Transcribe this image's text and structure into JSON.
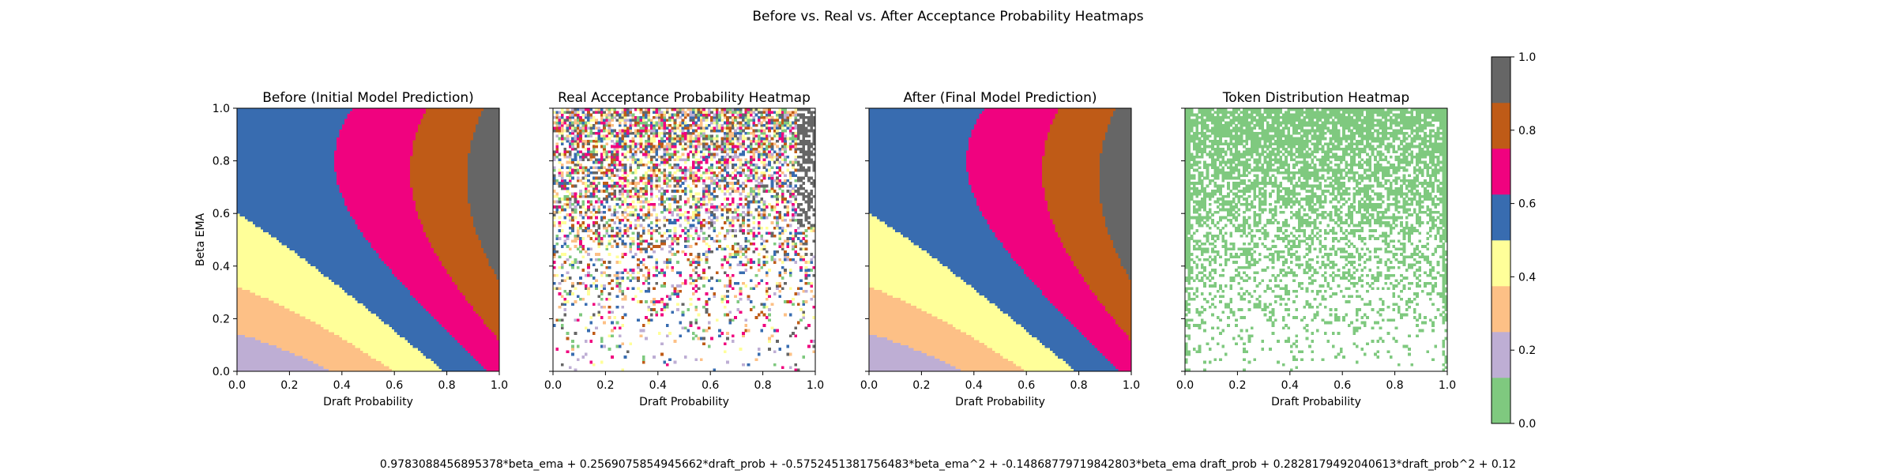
{
  "figure": {
    "suptitle": "Before vs. Real vs. After Acceptance Probability Heatmaps",
    "formula": "0.9783088456895378*beta_ema + 0.2569075854945662*draft_prob + -0.5752451381756483*beta_ema^2 + -0.14868779719842803*beta_ema draft_prob + 0.2828179492040613*draft_prob^2 + 0.12"
  },
  "colormap": {
    "name": "Accent",
    "colors": [
      "#7fc97f",
      "#beaed4",
      "#fdc086",
      "#ffff99",
      "#386cb0",
      "#f0027f",
      "#bf5b17",
      "#666666"
    ],
    "ticks": [
      "0.0",
      "0.2",
      "0.4",
      "0.6",
      "0.8",
      "1.0"
    ],
    "range": [
      0,
      1
    ]
  },
  "chart_data": [
    {
      "type": "heatmap",
      "title": "Before (Initial Model Prediction)",
      "xlabel": "Draft Probability",
      "ylabel": "Beta EMA",
      "xlim": [
        0,
        1
      ],
      "ylim": [
        0,
        1
      ],
      "xticks": [
        "0.0",
        "0.2",
        "0.4",
        "0.6",
        "0.8",
        "1.0"
      ],
      "yticks": [
        "0.0",
        "0.2",
        "0.4",
        "0.6",
        "0.8",
        "1.0"
      ],
      "grid": false,
      "resolution": 100,
      "z_function": {
        "form": "polynomial",
        "terms": {
          "b": 0.9783088456895378,
          "d": 0.2569075854945662,
          "b2": -0.5752451381756483,
          "bd": -0.14868779719842803,
          "d2": 0.2828179492040613,
          "c": 0.12
        }
      }
    },
    {
      "type": "heatmap",
      "title": "Real Acceptance Probability Heatmap",
      "xlabel": "Draft Probability",
      "ylabel": "",
      "xlim": [
        0,
        1
      ],
      "ylim": [
        0,
        1
      ],
      "xticks": [
        "0.0",
        "0.2",
        "0.4",
        "0.6",
        "0.8",
        "1.0"
      ],
      "yticks": [],
      "grid": false,
      "resolution": 100,
      "z_function": {
        "form": "random_sparse",
        "note": "noisy empirical acceptance; sparser toward low Beta EMA"
      }
    },
    {
      "type": "heatmap",
      "title": "After (Final Model Prediction)",
      "xlabel": "Draft Probability",
      "ylabel": "",
      "xlim": [
        0,
        1
      ],
      "ylim": [
        0,
        1
      ],
      "xticks": [
        "0.0",
        "0.2",
        "0.4",
        "0.6",
        "0.8",
        "1.0"
      ],
      "yticks": [],
      "grid": false,
      "resolution": 100,
      "z_function": {
        "form": "polynomial",
        "terms": {
          "b": 0.9783088456895378,
          "d": 0.2569075854945662,
          "b2": -0.5752451381756483,
          "bd": -0.14868779719842803,
          "d2": 0.2828179492040613,
          "c": 0.12
        }
      }
    },
    {
      "type": "heatmap",
      "title": "Token Distribution Heatmap",
      "xlabel": "Draft Probability",
      "ylabel": "",
      "xlim": [
        0,
        1
      ],
      "ylim": [
        0,
        1
      ],
      "xticks": [
        "0.0",
        "0.2",
        "0.4",
        "0.6",
        "0.8",
        "1.0"
      ],
      "yticks": [],
      "grid": false,
      "resolution": 100,
      "z_function": {
        "form": "random_density",
        "color": "#7fc97f",
        "note": "token presence, denser at high Beta EMA"
      }
    }
  ]
}
